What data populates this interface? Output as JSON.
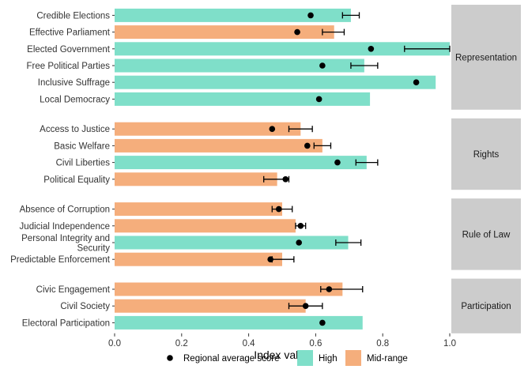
{
  "chart_data": {
    "type": "bar",
    "orientation": "horizontal",
    "xlabel": "Index value",
    "xlim": [
      0,
      1.0
    ],
    "x_ticks": [
      "0.0",
      "0.2",
      "0.4",
      "0.6",
      "0.8",
      "1.0"
    ],
    "x_tick_values": [
      0,
      0.2,
      0.4,
      0.6,
      0.8,
      1.0
    ],
    "grid": false,
    "legend_position": "bottom",
    "legend": {
      "point_label": "Regional average score",
      "fill_items": [
        {
          "label": "High",
          "color": "#7fdfc9"
        },
        {
          "label": "Mid-range",
          "color": "#f5ae7c"
        }
      ]
    },
    "colors": {
      "High": "#7fdfc9",
      "Mid-range": "#f5ae7c",
      "strip": "#cccccc",
      "point": "#000000"
    },
    "facets": [
      {
        "name": "Representation",
        "items": [
          {
            "label": "Credible Elections",
            "value": 0.705,
            "category": "High",
            "avg": 0.585,
            "err_low": 0.68,
            "err_high": 0.73
          },
          {
            "label": "Effective Parliament",
            "value": 0.655,
            "category": "Mid-range",
            "avg": 0.545,
            "err_low": 0.62,
            "err_high": 0.685
          },
          {
            "label": "Elected Government",
            "value": 1.0,
            "category": "High",
            "avg": 0.765,
            "err_low": 0.865,
            "err_high": 1.0
          },
          {
            "label": "Free Political Parties",
            "value": 0.745,
            "category": "High",
            "avg": 0.62,
            "err_low": 0.705,
            "err_high": 0.785
          },
          {
            "label": "Inclusive Suffrage",
            "value": 0.958,
            "category": "High",
            "avg": 0.9,
            "err_low": null,
            "err_high": null
          },
          {
            "label": "Local Democracy",
            "value": 0.762,
            "category": "High",
            "avg": 0.61,
            "err_low": null,
            "err_high": null
          }
        ]
      },
      {
        "name": "Rights",
        "items": [
          {
            "label": "Access to Justice",
            "value": 0.555,
            "category": "Mid-range",
            "avg": 0.47,
            "err_low": 0.52,
            "err_high": 0.59
          },
          {
            "label": "Basic Welfare",
            "value": 0.62,
            "category": "Mid-range",
            "avg": 0.575,
            "err_low": 0.595,
            "err_high": 0.645
          },
          {
            "label": "Civil Liberties",
            "value": 0.752,
            "category": "High",
            "avg": 0.665,
            "err_low": 0.72,
            "err_high": 0.785
          },
          {
            "label": "Political Equality",
            "value": 0.485,
            "category": "Mid-range",
            "avg": 0.51,
            "err_low": 0.445,
            "err_high": 0.52
          }
        ]
      },
      {
        "name": "Rule of Law",
        "items": [
          {
            "label": "Absence of Corruption",
            "value": 0.5,
            "category": "Mid-range",
            "avg": 0.49,
            "err_low": 0.47,
            "err_high": 0.53
          },
          {
            "label": "Judicial Independence",
            "value": 0.54,
            "category": "Mid-range",
            "avg": 0.555,
            "err_low": 0.54,
            "err_high": 0.57
          },
          {
            "label": "Personal Integrity and Security",
            "label_lines": [
              "Personal Integrity and",
              "Security"
            ],
            "value": 0.697,
            "category": "High",
            "avg": 0.55,
            "err_low": 0.66,
            "err_high": 0.735
          },
          {
            "label": "Predictable Enforcement",
            "value": 0.5,
            "category": "Mid-range",
            "avg": 0.465,
            "err_low": 0.47,
            "err_high": 0.535
          }
        ]
      },
      {
        "name": "Participation",
        "items": [
          {
            "label": "Civic Engagement",
            "value": 0.68,
            "category": "Mid-range",
            "avg": 0.64,
            "err_low": 0.615,
            "err_high": 0.74
          },
          {
            "label": "Civil Society",
            "value": 0.57,
            "category": "Mid-range",
            "avg": 0.57,
            "err_low": 0.52,
            "err_high": 0.62
          },
          {
            "label": "Electoral Participation",
            "value": 0.74,
            "category": "High",
            "avg": 0.62,
            "err_low": null,
            "err_high": null
          }
        ]
      }
    ]
  }
}
